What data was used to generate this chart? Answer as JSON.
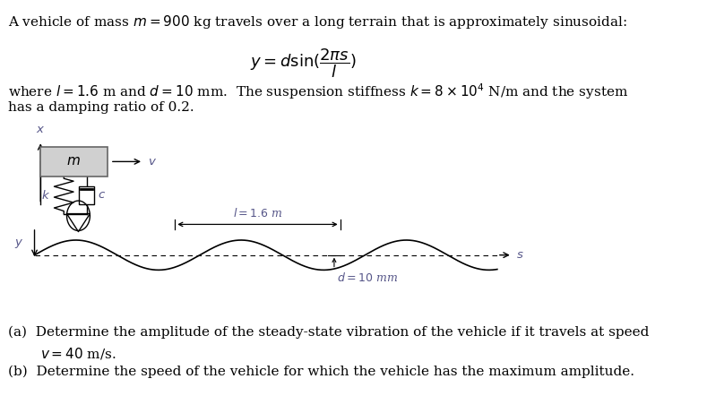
{
  "bg_color": "#ffffff",
  "text_color": "#000000",
  "fig_width": 7.89,
  "fig_height": 4.42,
  "title_line1": "A vehicle of mass $m = 900$ kg travels over a long terrain that is approximately sinusoidal:",
  "formula": "$y = d\\sin(\\dfrac{2\\pi s}{l})$",
  "param_line": "where $l = 1.6$ m and $d = 10$ mm.  The suspension stiffness $k = 8 \\times 10^4$ N/m and the system",
  "param_line2": "has a damping ratio of 0.2.",
  "q_a": "(a)  Determine the amplitude of the steady-state vibration of the vehicle if it travels at speed",
  "q_a2": "$v = 40$ m/s.",
  "q_b": "(b)  Determine the speed of the vehicle for which the vehicle has the maximum amplitude.",
  "sine_label_l": "$l = 1.6$ m",
  "sine_label_d": "$d = 10$ mm",
  "label_x": "$x$",
  "label_y": "$y$",
  "label_v": "$v$",
  "label_m": "$m$",
  "label_k": "$k$",
  "label_c": "$c$",
  "label_s": "$s$",
  "fs_main": 11.0,
  "fs_formula": 13.0,
  "fs_small": 9.5,
  "fs_diagram": 9.5
}
